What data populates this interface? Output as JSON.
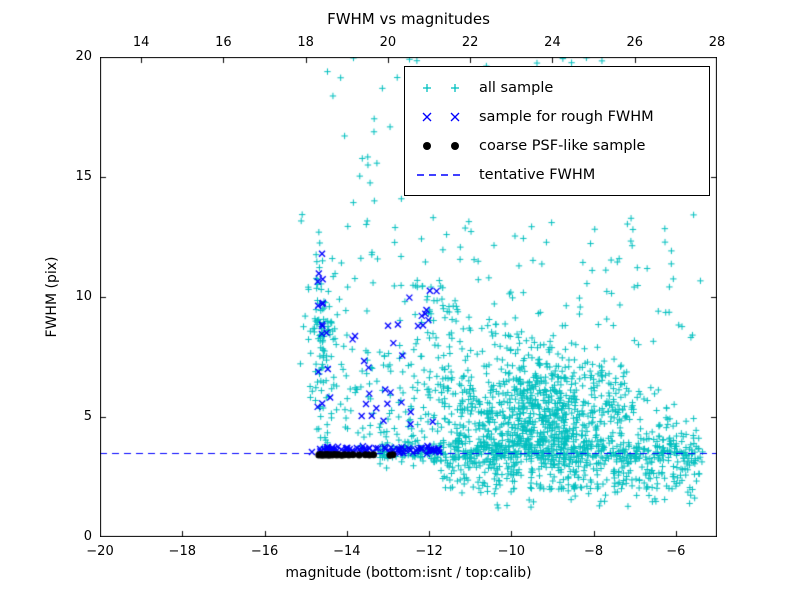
{
  "chart_data": {
    "type": "scatter",
    "title": "FWHM vs magnitudes",
    "xlabel": "magnitude (bottom:isnt / top:calib)",
    "ylabel": "FWHM (pix)",
    "xlim": [
      -20,
      -5
    ],
    "ylim": [
      0,
      20
    ],
    "top_xlim": [
      13,
      28
    ],
    "x_ticks": [
      -20,
      -18,
      -16,
      -14,
      -12,
      -10,
      -8,
      -6
    ],
    "top_ticks": [
      14,
      16,
      18,
      20,
      22,
      24,
      26,
      28
    ],
    "y_ticks": [
      0,
      5,
      10,
      15,
      20
    ],
    "grid": false,
    "legend_position": "upper right",
    "tentative_fwhm": 3.5,
    "background_color": "#ffffff",
    "axis_color": "#000000",
    "seed": 7,
    "series": [
      {
        "name": "all sample",
        "marker": "plus",
        "color": "#00bfbf",
        "clusters": [
          {
            "kind": "uniform",
            "n": 80,
            "x": [
              -15.2,
              -5.4
            ],
            "y": [
              13.0,
              20.0
            ]
          },
          {
            "kind": "uniform",
            "n": 110,
            "x": [
              -15.0,
              -5.4
            ],
            "y": [
              8.0,
              13.0
            ]
          },
          {
            "kind": "xgauss",
            "n": 45,
            "cx": -14.65,
            "sx": 0.12,
            "y": [
              3.6,
              12.3
            ]
          },
          {
            "kind": "gauss",
            "n": 50,
            "cx": -14.6,
            "cy": 8.6,
            "sx": 0.18,
            "sy": 0.8
          },
          {
            "kind": "uniform",
            "n": 130,
            "x": [
              -14.9,
              -11.6
            ],
            "y": [
              3.8,
              8.0
            ]
          },
          {
            "kind": "uniform",
            "n": 25,
            "x": [
              -12.4,
              -11.6
            ],
            "y": [
              8.0,
              10.5
            ]
          },
          {
            "kind": "gauss",
            "n": 800,
            "cx": -9.4,
            "cy": 5.0,
            "sx": 1.15,
            "sy": 1.35,
            "clip_x": [
              -12.6,
              -5.35
            ],
            "clip_y": [
              1.8,
              10.5
            ]
          },
          {
            "kind": "wedge",
            "n": 450,
            "x": [
              -11.8,
              -5.35
            ],
            "base": 2.0,
            "amp0": 3.0,
            "slope": 0.8,
            "pow": 1.3
          },
          {
            "kind": "ygauss",
            "n": 420,
            "x": [
              -13.2,
              -5.35
            ],
            "cy": 3.55,
            "sy": 0.28
          },
          {
            "kind": "uniform",
            "n": 70,
            "x": [
              -10.5,
              -5.4
            ],
            "y": [
              1.2,
              3.0
            ]
          }
        ]
      },
      {
        "name": "sample for rough FWHM",
        "marker": "x",
        "color": "#0000ff",
        "clusters": [
          {
            "kind": "ygauss",
            "n": 85,
            "x": [
              -14.85,
              -11.75
            ],
            "cy": 3.62,
            "sy": 0.07
          },
          {
            "kind": "xgauss",
            "n": 16,
            "cx": -14.62,
            "sx": 0.07,
            "y": [
              4.2,
              11.9
            ]
          },
          {
            "kind": "uniform",
            "n": 18,
            "x": [
              -13.9,
              -12.5
            ],
            "y": [
              4.8,
              9.2
            ]
          },
          {
            "kind": "uniform",
            "n": 12,
            "x": [
              -12.5,
              -11.8
            ],
            "y": [
              4.5,
              10.8
            ]
          }
        ]
      },
      {
        "name": "coarse PSF-like sample",
        "marker": "dot",
        "color": "#000000",
        "points": [
          [
            -14.68,
            3.42
          ],
          [
            -14.64,
            3.44
          ],
          [
            -14.6,
            3.41
          ],
          [
            -14.56,
            3.43
          ],
          [
            -14.52,
            3.42
          ],
          [
            -14.48,
            3.44
          ],
          [
            -14.44,
            3.41
          ],
          [
            -14.4,
            3.43
          ],
          [
            -14.35,
            3.42
          ],
          [
            -14.3,
            3.44
          ],
          [
            -14.25,
            3.42
          ],
          [
            -14.2,
            3.43
          ],
          [
            -14.12,
            3.41
          ],
          [
            -14.05,
            3.43
          ],
          [
            -13.95,
            3.42
          ],
          [
            -13.85,
            3.43
          ],
          [
            -13.7,
            3.42
          ],
          [
            -13.55,
            3.43
          ],
          [
            -13.45,
            3.42
          ],
          [
            -13.35,
            3.43
          ],
          [
            -12.95,
            3.41
          ],
          [
            -12.88,
            3.43
          ]
        ]
      },
      {
        "name": "tentative FWHM",
        "marker": "dashed",
        "color": "#0000ff",
        "y": 3.5
      }
    ]
  }
}
